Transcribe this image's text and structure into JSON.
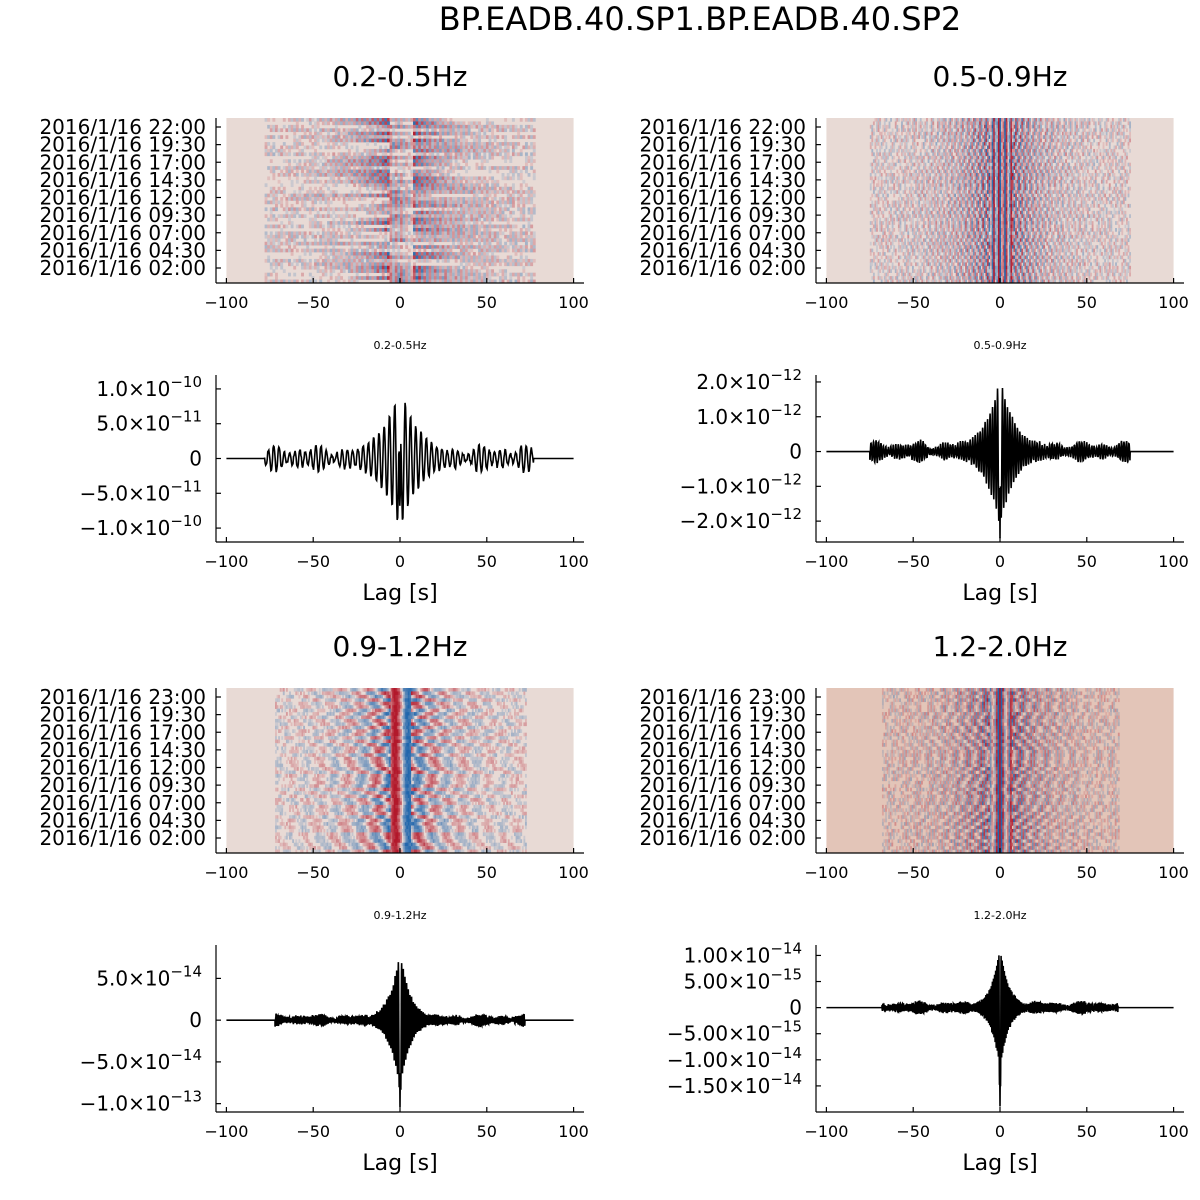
{
  "figure_title": "BP.EADB.40.SP1.BP.EADB.40.SP2",
  "colors": {
    "background": "#e8dad5",
    "background_hf": "#e3c5b8",
    "red": "#b2182b",
    "blue": "#2166ac",
    "trace": "#000000"
  },
  "chart_data": [
    {
      "type": "heatmap",
      "title": "0.2-0.5Hz",
      "x_ticks": [
        -100,
        -50,
        0,
        50,
        100
      ],
      "x_tick_labels": [
        "−100",
        "−50",
        "0",
        "50",
        "100"
      ],
      "xlim": [
        -100,
        100
      ],
      "y_tick_labels": [
        "2016/1/16 22:00",
        "2016/1/16 19:30",
        "2016/1/16 17:00",
        "2016/1/16 14:30",
        "2016/1/16 12:00",
        "2016/1/16 09:30",
        "2016/1/16 07:00",
        "2016/1/16 04:30",
        "2016/1/16 02:00"
      ],
      "signal_extent_lag_s": [
        -78,
        77
      ],
      "freq_hz": 0.33,
      "rows": 48,
      "texture": "coarse",
      "background": "#e8dad5"
    },
    {
      "type": "heatmap",
      "title": "0.5-0.9Hz",
      "x_ticks": [
        -100,
        -50,
        0,
        50,
        100
      ],
      "x_tick_labels": [
        "−100",
        "−50",
        "0",
        "50",
        "100"
      ],
      "xlim": [
        -100,
        100
      ],
      "y_tick_labels": [
        "2016/1/16 22:00",
        "2016/1/16 19:30",
        "2016/1/16 17:00",
        "2016/1/16 14:30",
        "2016/1/16 12:00",
        "2016/1/16 09:30",
        "2016/1/16 07:00",
        "2016/1/16 04:30",
        "2016/1/16 02:00"
      ],
      "signal_extent_lag_s": [
        -75,
        75
      ],
      "freq_hz": 0.7,
      "rows": 48,
      "texture": "fine",
      "background": "#e8dad5"
    },
    {
      "type": "line",
      "title": "0.2-0.5Hz",
      "xlabel": "Lag [s]",
      "xlim": [
        -100,
        100
      ],
      "x_ticks": [
        -100,
        -50,
        0,
        50,
        100
      ],
      "x_tick_labels": [
        "−100",
        "−50",
        "0",
        "50",
        "100"
      ],
      "ylim": [
        -1.2e-10,
        1.2e-10
      ],
      "y_ticks": [
        1e-10,
        5e-11,
        0,
        -5e-11,
        -1e-10
      ],
      "y_tick_mantissas": [
        "1.0×10",
        "5.0×10",
        "0",
        "−5.0×10",
        "−1.0×10"
      ],
      "y_tick_exponents": [
        "−10",
        "−11",
        "",
        "−11",
        "−10"
      ],
      "signal_extent_lag_s": [
        -78,
        77
      ],
      "peak_amplitude": 1.03e-10,
      "trough_amplitude": -1.1e-10,
      "freq_hz": 0.33,
      "envelope_decay_s": 12,
      "coda_level": 0.2
    },
    {
      "type": "line",
      "title": "0.5-0.9Hz",
      "xlabel": "Lag [s]",
      "xlim": [
        -100,
        100
      ],
      "x_ticks": [
        -100,
        -50,
        0,
        50,
        100
      ],
      "x_tick_labels": [
        "−100",
        "−50",
        "0",
        "50",
        "100"
      ],
      "ylim": [
        -2.6e-12,
        2.2e-12
      ],
      "y_ticks": [
        2e-12,
        1e-12,
        0,
        -1e-12,
        -2e-12
      ],
      "y_tick_mantissas": [
        "2.0×10",
        "1.0×10",
        "0",
        "−1.0×10",
        "−2.0×10"
      ],
      "y_tick_exponents": [
        "−12",
        "−12",
        "",
        "−12",
        "−12"
      ],
      "signal_extent_lag_s": [
        -75,
        75
      ],
      "peak_amplitude": 2.1e-12,
      "trough_amplitude": -2.5e-12,
      "freq_hz": 0.7,
      "envelope_decay_s": 9,
      "coda_level": 0.15
    },
    {
      "type": "heatmap",
      "title": "0.9-1.2Hz",
      "x_ticks": [
        -100,
        -50,
        0,
        50,
        100
      ],
      "x_tick_labels": [
        "−100",
        "−50",
        "0",
        "50",
        "100"
      ],
      "xlim": [
        -100,
        100
      ],
      "y_tick_labels": [
        "2016/1/16 23:00",
        "2016/1/16 19:30",
        "2016/1/16 17:00",
        "2016/1/16 14:30",
        "2016/1/16 12:00",
        "2016/1/16 09:30",
        "2016/1/16 07:00",
        "2016/1/16 04:30",
        "2016/1/16 02:00"
      ],
      "signal_extent_lag_s": [
        -72,
        72
      ],
      "freq_hz": 1.05,
      "rows": 48,
      "texture": "fine",
      "background": "#e8dad5"
    },
    {
      "type": "heatmap",
      "title": "1.2-2.0Hz",
      "x_ticks": [
        -100,
        -50,
        0,
        50,
        100
      ],
      "x_tick_labels": [
        "−100",
        "−50",
        "0",
        "50",
        "100"
      ],
      "xlim": [
        -100,
        100
      ],
      "y_tick_labels": [
        "2016/1/16 23:00",
        "2016/1/16 19:30",
        "2016/1/16 17:00",
        "2016/1/16 14:30",
        "2016/1/16 12:00",
        "2016/1/16 09:30",
        "2016/1/16 07:00",
        "2016/1/16 04:30",
        "2016/1/16 02:00"
      ],
      "signal_extent_lag_s": [
        -68,
        68
      ],
      "freq_hz": 1.6,
      "rows": 48,
      "texture": "fine",
      "background": "#e3c5b8"
    },
    {
      "type": "line",
      "title": "0.9-1.2Hz",
      "xlabel": "Lag [s]",
      "xlim": [
        -100,
        100
      ],
      "x_ticks": [
        -100,
        -50,
        0,
        50,
        100
      ],
      "x_tick_labels": [
        "−100",
        "−50",
        "0",
        "50",
        "100"
      ],
      "ylim": [
        -1.1e-13,
        9e-14
      ],
      "y_ticks": [
        5e-14,
        0,
        -5e-14,
        -1e-13
      ],
      "y_tick_mantissas": [
        "5.0×10",
        "0",
        "−5.0×10",
        "−1.0×10"
      ],
      "y_tick_exponents": [
        "−14",
        "",
        "−14",
        "−13"
      ],
      "signal_extent_lag_s": [
        -72,
        72
      ],
      "peak_amplitude": 8.2e-14,
      "trough_amplitude": -1.05e-13,
      "freq_hz": 1.05,
      "envelope_decay_s": 6,
      "coda_level": 0.08
    },
    {
      "type": "line",
      "title": "1.2-2.0Hz",
      "xlabel": "Lag [s]",
      "xlim": [
        -100,
        100
      ],
      "x_ticks": [
        -100,
        -50,
        0,
        50,
        100
      ],
      "x_tick_labels": [
        "−100",
        "−50",
        "0",
        "50",
        "100"
      ],
      "ylim": [
        -2e-14,
        1.2e-14
      ],
      "y_ticks": [
        1e-14,
        5e-15,
        0,
        -5e-15,
        -1e-14,
        -1.5e-14
      ],
      "y_tick_mantissas": [
        "1.00×10",
        "5.00×10",
        "0",
        "−5.00×10",
        "−1.00×10",
        "−1.50×10"
      ],
      "y_tick_exponents": [
        "−14",
        "−15",
        "",
        "−15",
        "−14",
        "−14"
      ],
      "signal_extent_lag_s": [
        -68,
        68
      ],
      "peak_amplitude": 1.15e-14,
      "trough_amplitude": -1.9e-14,
      "freq_hz": 1.6,
      "envelope_decay_s": 5,
      "coda_level": 0.1
    }
  ]
}
